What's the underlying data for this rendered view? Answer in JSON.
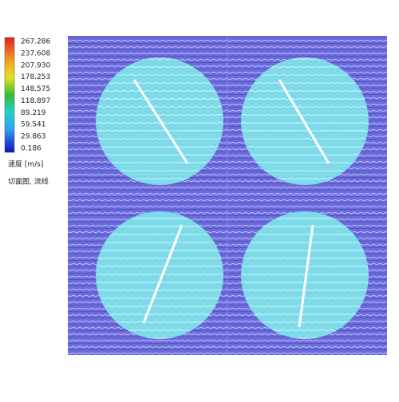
{
  "legend": {
    "ticks": [
      "267.286",
      "237.608",
      "207.930",
      "178.253",
      "148.575",
      "118.897",
      "89.219",
      "59.541",
      "29.863",
      "0.186"
    ],
    "title": "速度 [m/s]",
    "subtitle": "切面图, 流线"
  }
}
